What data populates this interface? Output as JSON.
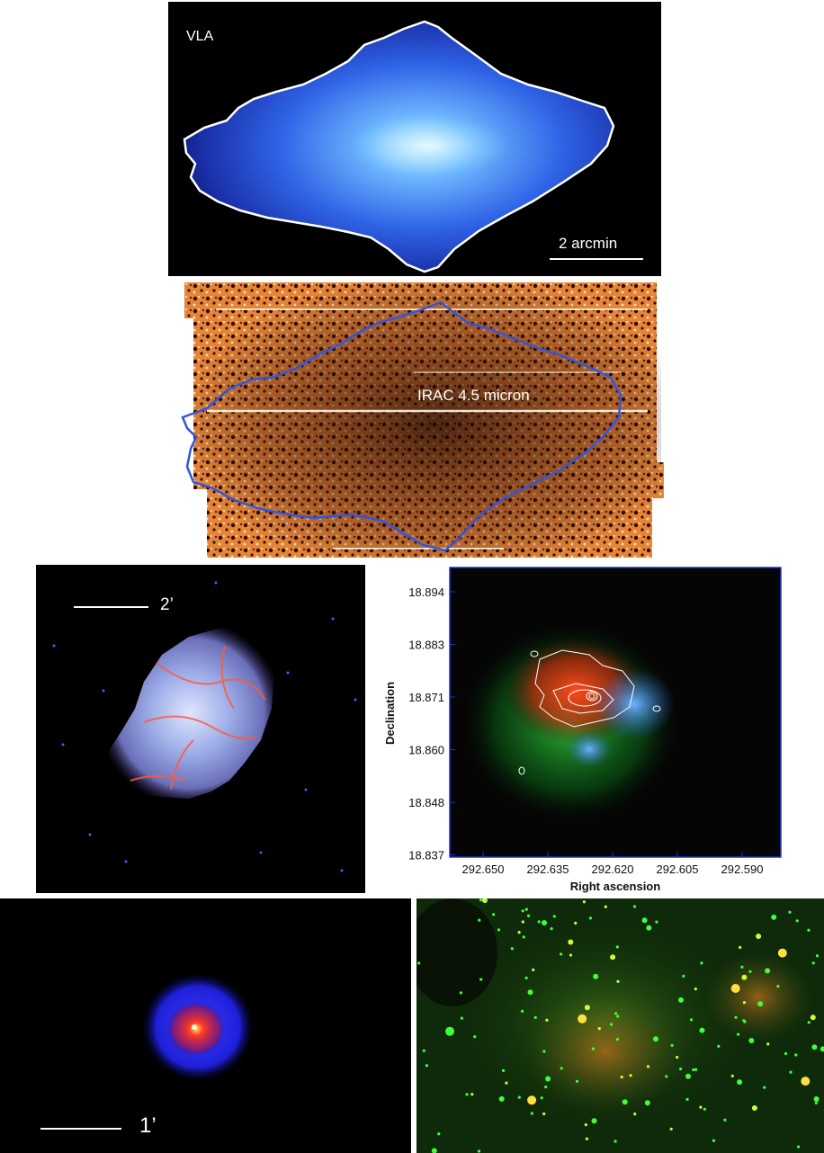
{
  "panels": {
    "vla": {
      "label": "VLA",
      "scalebar_label": "2 arcmin"
    },
    "irac": {
      "label": "IRAC 4.5 micron"
    },
    "composite_left": {
      "scalebar_label": "2’"
    },
    "contour_plot": {
      "ylabel": "Declination",
      "xlabel": "Right ascension",
      "yticks": [
        "18.894",
        "18.883",
        "18.871",
        "18.860",
        "18.848",
        "18.837"
      ],
      "xticks": [
        "292.650",
        "292.635",
        "292.620",
        "292.605",
        "292.590"
      ]
    },
    "compact": {
      "scalebar_label": "1’"
    },
    "starfield": {}
  },
  "colors": {
    "vla_outline": "#ffffff",
    "irac_outline": "#3355dd",
    "plot_frame": "#2233cc"
  }
}
